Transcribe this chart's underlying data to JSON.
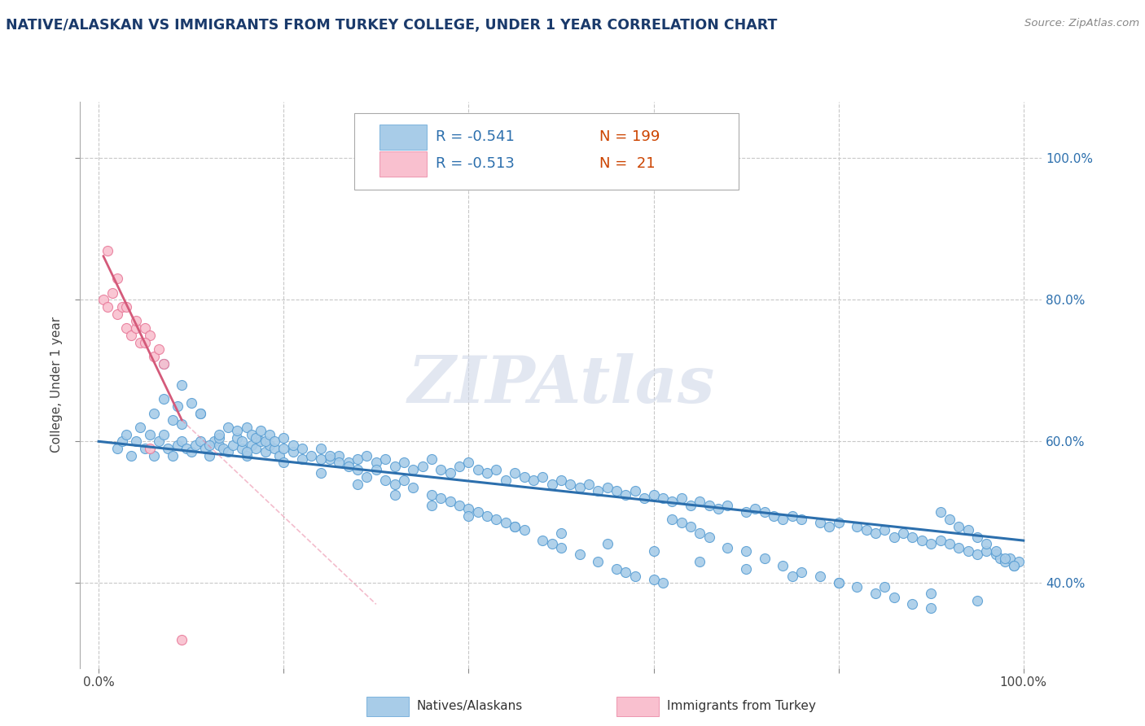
{
  "title": "NATIVE/ALASKAN VS IMMIGRANTS FROM TURKEY COLLEGE, UNDER 1 YEAR CORRELATION CHART",
  "source_text": "Source: ZipAtlas.com",
  "ylabel": "College, Under 1 year",
  "xlim": [
    -0.02,
    1.02
  ],
  "ylim": [
    0.28,
    1.08
  ],
  "x_ticks": [
    0.0,
    0.2,
    0.4,
    0.6,
    0.8,
    1.0
  ],
  "x_tick_labels": [
    "0.0%",
    "",
    "",
    "",
    "",
    "100.0%"
  ],
  "y_ticks": [
    0.4,
    0.6,
    0.8,
    1.0
  ],
  "y_tick_labels": [
    "40.0%",
    "60.0%",
    "80.0%",
    "100.0%"
  ],
  "blue_color": "#a8cce8",
  "blue_edge_color": "#5a9fd4",
  "blue_line_color": "#2c6fad",
  "pink_color": "#f9c0cf",
  "pink_edge_color": "#e87a9a",
  "pink_line_color": "#d45a7a",
  "grid_color": "#c8c8c8",
  "title_color": "#1a3a6b",
  "right_tick_color": "#2c6fad",
  "watermark_color": "#d0d8e8",
  "legend_text_dark": "#1a3a6b",
  "legend_R_color": "#2c6fad",
  "legend_N_color": "#cc4400",
  "native_scatter_x": [
    0.02,
    0.025,
    0.03,
    0.035,
    0.04,
    0.045,
    0.05,
    0.055,
    0.06,
    0.065,
    0.07,
    0.075,
    0.08,
    0.085,
    0.09,
    0.095,
    0.1,
    0.105,
    0.11,
    0.115,
    0.12,
    0.125,
    0.13,
    0.135,
    0.14,
    0.145,
    0.15,
    0.155,
    0.16,
    0.165,
    0.17,
    0.175,
    0.18,
    0.185,
    0.19,
    0.195,
    0.2,
    0.21,
    0.22,
    0.23,
    0.24,
    0.25,
    0.26,
    0.27,
    0.28,
    0.29,
    0.3,
    0.31,
    0.32,
    0.33,
    0.34,
    0.35,
    0.36,
    0.37,
    0.38,
    0.39,
    0.4,
    0.41,
    0.42,
    0.43,
    0.44,
    0.45,
    0.46,
    0.47,
    0.48,
    0.49,
    0.5,
    0.51,
    0.52,
    0.53,
    0.54,
    0.55,
    0.56,
    0.57,
    0.58,
    0.59,
    0.6,
    0.61,
    0.62,
    0.63,
    0.64,
    0.65,
    0.66,
    0.67,
    0.68,
    0.7,
    0.71,
    0.72,
    0.73,
    0.74,
    0.75,
    0.76,
    0.78,
    0.79,
    0.8,
    0.82,
    0.83,
    0.84,
    0.85,
    0.86,
    0.87,
    0.88,
    0.89,
    0.9,
    0.91,
    0.92,
    0.93,
    0.94,
    0.95,
    0.96,
    0.97,
    0.975,
    0.98,
    0.985,
    0.99,
    0.995,
    0.06,
    0.07,
    0.08,
    0.085,
    0.09,
    0.1,
    0.11,
    0.12,
    0.13,
    0.14,
    0.15,
    0.155,
    0.16,
    0.165,
    0.17,
    0.175,
    0.18,
    0.185,
    0.19,
    0.2,
    0.21,
    0.22,
    0.24,
    0.25,
    0.26,
    0.27,
    0.28,
    0.29,
    0.3,
    0.31,
    0.32,
    0.33,
    0.34,
    0.36,
    0.37,
    0.38,
    0.39,
    0.4,
    0.41,
    0.42,
    0.43,
    0.44,
    0.45,
    0.46,
    0.48,
    0.49,
    0.5,
    0.52,
    0.54,
    0.56,
    0.57,
    0.58,
    0.6,
    0.61,
    0.62,
    0.63,
    0.64,
    0.65,
    0.66,
    0.68,
    0.7,
    0.72,
    0.74,
    0.76,
    0.78,
    0.8,
    0.82,
    0.84,
    0.86,
    0.88,
    0.9,
    0.91,
    0.92,
    0.93,
    0.94,
    0.95,
    0.96,
    0.97,
    0.98,
    0.99,
    0.07,
    0.09,
    0.11,
    0.13,
    0.16,
    0.2,
    0.24,
    0.28,
    0.32,
    0.36,
    0.4,
    0.45,
    0.5,
    0.55,
    0.6,
    0.65,
    0.7,
    0.75,
    0.8,
    0.85,
    0.9,
    0.95
  ],
  "native_scatter_y": [
    0.59,
    0.6,
    0.61,
    0.58,
    0.6,
    0.62,
    0.59,
    0.61,
    0.58,
    0.6,
    0.61,
    0.59,
    0.58,
    0.595,
    0.6,
    0.59,
    0.585,
    0.595,
    0.6,
    0.59,
    0.58,
    0.6,
    0.595,
    0.59,
    0.585,
    0.595,
    0.605,
    0.59,
    0.58,
    0.595,
    0.59,
    0.6,
    0.585,
    0.595,
    0.59,
    0.58,
    0.59,
    0.585,
    0.575,
    0.58,
    0.59,
    0.575,
    0.58,
    0.57,
    0.575,
    0.58,
    0.57,
    0.575,
    0.565,
    0.57,
    0.56,
    0.565,
    0.575,
    0.56,
    0.555,
    0.565,
    0.57,
    0.56,
    0.555,
    0.56,
    0.545,
    0.555,
    0.55,
    0.545,
    0.55,
    0.54,
    0.545,
    0.54,
    0.535,
    0.54,
    0.53,
    0.535,
    0.53,
    0.525,
    0.53,
    0.52,
    0.525,
    0.52,
    0.515,
    0.52,
    0.51,
    0.515,
    0.51,
    0.505,
    0.51,
    0.5,
    0.505,
    0.5,
    0.495,
    0.49,
    0.495,
    0.49,
    0.485,
    0.48,
    0.485,
    0.48,
    0.475,
    0.47,
    0.475,
    0.465,
    0.47,
    0.465,
    0.46,
    0.455,
    0.46,
    0.455,
    0.45,
    0.445,
    0.44,
    0.445,
    0.44,
    0.435,
    0.43,
    0.435,
    0.425,
    0.43,
    0.64,
    0.66,
    0.63,
    0.65,
    0.625,
    0.655,
    0.64,
    0.595,
    0.605,
    0.62,
    0.615,
    0.6,
    0.62,
    0.61,
    0.605,
    0.615,
    0.6,
    0.61,
    0.6,
    0.605,
    0.595,
    0.59,
    0.575,
    0.58,
    0.57,
    0.565,
    0.56,
    0.55,
    0.56,
    0.545,
    0.54,
    0.545,
    0.535,
    0.525,
    0.52,
    0.515,
    0.51,
    0.505,
    0.5,
    0.495,
    0.49,
    0.485,
    0.48,
    0.475,
    0.46,
    0.455,
    0.45,
    0.44,
    0.43,
    0.42,
    0.415,
    0.41,
    0.405,
    0.4,
    0.49,
    0.485,
    0.48,
    0.47,
    0.465,
    0.45,
    0.445,
    0.435,
    0.425,
    0.415,
    0.41,
    0.4,
    0.395,
    0.385,
    0.38,
    0.37,
    0.365,
    0.5,
    0.49,
    0.48,
    0.475,
    0.465,
    0.455,
    0.445,
    0.435,
    0.425,
    0.71,
    0.68,
    0.64,
    0.61,
    0.585,
    0.57,
    0.555,
    0.54,
    0.525,
    0.51,
    0.495,
    0.48,
    0.47,
    0.455,
    0.445,
    0.43,
    0.42,
    0.41,
    0.4,
    0.395,
    0.385,
    0.375
  ],
  "turkey_scatter_x": [
    0.005,
    0.01,
    0.015,
    0.02,
    0.025,
    0.03,
    0.035,
    0.04,
    0.045,
    0.05,
    0.055,
    0.06,
    0.065,
    0.07,
    0.01,
    0.02,
    0.03,
    0.04,
    0.05,
    0.055,
    0.09
  ],
  "turkey_scatter_y": [
    0.8,
    0.79,
    0.81,
    0.78,
    0.79,
    0.76,
    0.75,
    0.76,
    0.74,
    0.76,
    0.75,
    0.72,
    0.73,
    0.71,
    0.87,
    0.83,
    0.79,
    0.77,
    0.74,
    0.59,
    0.32
  ],
  "native_trend_x": [
    0.0,
    1.0
  ],
  "native_trend_y": [
    0.6,
    0.46
  ],
  "turkey_trend_x": [
    -0.02,
    0.35
  ],
  "turkey_trend_y": [
    0.87,
    0.38
  ]
}
